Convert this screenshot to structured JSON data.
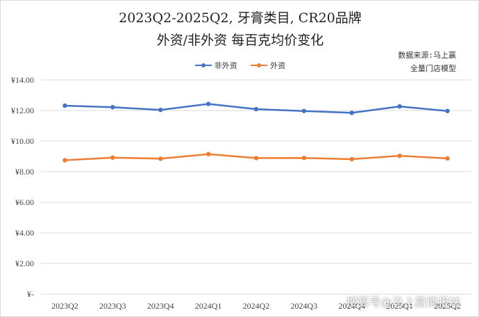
{
  "title_line1": "2023Q2-2025Q2, 牙膏类目, CR20品牌",
  "title_line2": "外资/非外资 每百克均价变化",
  "source_line1": "数据来源:马上赢",
  "source_line2": "全量门店模型",
  "watermark": "搜狐号@马上赢情报站",
  "chart_data": {
    "type": "line",
    "categories": [
      "2023Q2",
      "2023Q3",
      "2023Q4",
      "2024Q1",
      "2024Q2",
      "2024Q3",
      "2024Q4",
      "2025Q1",
      "2025Q2"
    ],
    "series": [
      {
        "name": "非外资",
        "color": "#4472c4",
        "values": [
          12.32,
          12.22,
          12.04,
          12.43,
          12.09,
          11.97,
          11.85,
          12.27,
          11.97
        ]
      },
      {
        "name": "外资",
        "color": "#ed7d31",
        "values": [
          8.75,
          8.92,
          8.85,
          9.15,
          8.89,
          8.9,
          8.82,
          9.04,
          8.87
        ]
      }
    ],
    "ylim": [
      0,
      14
    ],
    "ystep": 2,
    "ytick_labels": [
      "¥-",
      "¥2.00",
      "¥4.00",
      "¥6.00",
      "¥8.00",
      "¥10.00",
      "¥12.00",
      "¥14.00"
    ],
    "legend_position": "top-center",
    "grid": true
  }
}
